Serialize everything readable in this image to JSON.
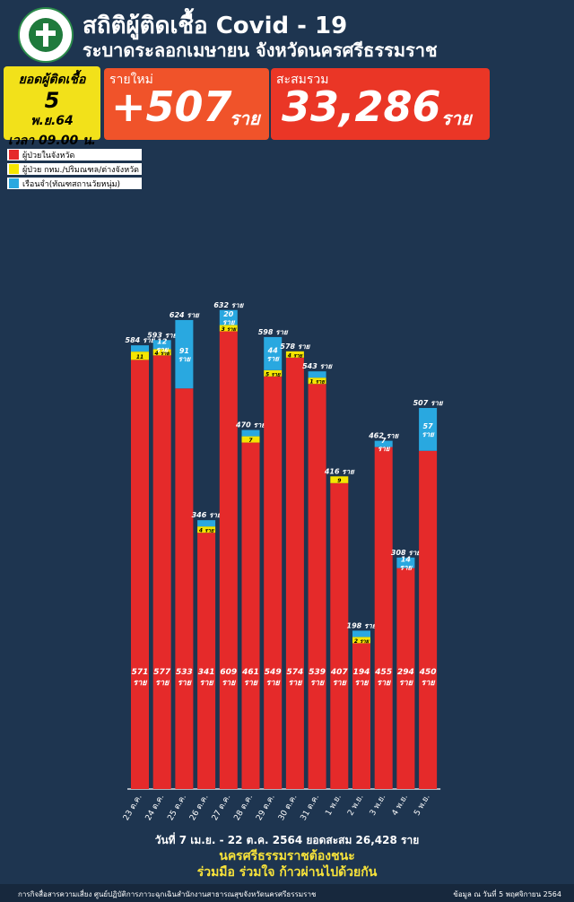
{
  "header": {
    "title_line1": "สถิติผู้ติดเชื้อ Covid - 19",
    "title_line2": "ระบาดระลอกเมษายน จังหวัดนครศรีธรรมราช"
  },
  "summary": {
    "date_label": "ยอดผู้ติดเชื้อ",
    "date_day": "5",
    "date_month": "พ.ย.64",
    "date_time": "เวลา 09.00 น.",
    "new_label": "รายใหม่",
    "new_value": "+507",
    "new_unit": "ราย",
    "total_label": "สะสมรวม",
    "total_value": "33,286",
    "total_unit": "ราย"
  },
  "legend": {
    "items": [
      {
        "label": "ผู้ป่วยในจังหวัด",
        "color": "#e52a2a"
      },
      {
        "label": "ผู้ป่วย กทม./ปริมณฑล/ต่างจังหวัด",
        "color": "#f5e600"
      },
      {
        "label": "เรือนจำ(ทัณฑสถานวัยหนุ่ม)",
        "color": "#29a8e0"
      }
    ]
  },
  "chart_data": {
    "type": "bar",
    "stacked": true,
    "categories": [
      "23 ต.ค.",
      "24 ต.ค.",
      "25 ต.ค.",
      "26 ต.ค.",
      "27 ต.ค.",
      "28 ต.ค.",
      "29 ต.ค.",
      "30 ต.ค.",
      "31 ต.ค.",
      "1 พ.ย.",
      "2 พ.ย.",
      "3 พ.ย.",
      "4 พ.ย.",
      "5 พ.ย."
    ],
    "series": [
      {
        "name": "ผู้ป่วยในจังหวัด",
        "color": "#e52a2a",
        "values": [
          571,
          577,
          533,
          341,
          609,
          461,
          549,
          574,
          539,
          407,
          194,
          455,
          294,
          450
        ]
      },
      {
        "name": "ผู้ป่วย กทม./ปริมณฑล/ต่างจังหวัด",
        "color": "#f5e600",
        "values": [
          11,
          4,
          0,
          4,
          3,
          7,
          5,
          4,
          1,
          9,
          2,
          0,
          0,
          0
        ]
      },
      {
        "name": "เรือนจำ(ทัณฑสถานวัยหนุ่ม)",
        "color": "#29a8e0",
        "values": [
          2,
          12,
          91,
          1,
          20,
          2,
          44,
          0,
          3,
          0,
          2,
          7,
          14,
          57
        ]
      }
    ],
    "bottom_labels": [
      "571 ราย",
      "577 ราย",
      "533 ราย",
      "341 ราย",
      "609 ราย",
      "461 ราย",
      "549 ราย",
      "574 ราย",
      "539 ราย",
      "407 ราย",
      "194 ราย",
      "455 ราย",
      "294 ราย",
      "450 ราย"
    ],
    "yellow_labels": [
      "11",
      "4 ราย",
      "",
      "4 ราย",
      "3 ราย",
      "7",
      "5 ราย",
      "4 ราย",
      "1 ราย",
      "9",
      "2 ราย",
      "",
      "",
      ""
    ],
    "blue_labels": [
      "",
      "12",
      "91",
      "",
      "20",
      "",
      "44",
      "",
      "",
      "",
      "",
      "7",
      "14",
      "57"
    ],
    "unit_word": "ราย",
    "total_labels": [
      "584 ราย",
      "593 ราย",
      "624 ราย",
      "346 ราย",
      "632 ราย",
      "470 ราย",
      "598 ราย",
      "578 ราย",
      "543 ราย",
      "416 ราย",
      "198 ราย",
      "462 ราย",
      "308 ราย",
      "507 ราย"
    ],
    "ylim": [
      0,
      680
    ]
  },
  "footer": {
    "note": "วันที่ 7 เม.ย. - 22 ต.ค. 2564 ยอดสะสม 26,428 ราย",
    "slogan1": "นครศรีธรรมราชต้องชนะ",
    "slogan2": "ร่วมมือ ร่วมใจ ก้าวผ่านไปด้วยกัน",
    "credit_left": "การกิจสื่อสารความเสี่ยง ศูนย์ปฏิบัติการภาวะฉุกเฉินสำนักงานสาธารณสุขจังหวัดนครศรีธรรมราช",
    "credit_right": "ข้อมูล ณ วันที่ 5 พฤศจิกายน 2564"
  }
}
